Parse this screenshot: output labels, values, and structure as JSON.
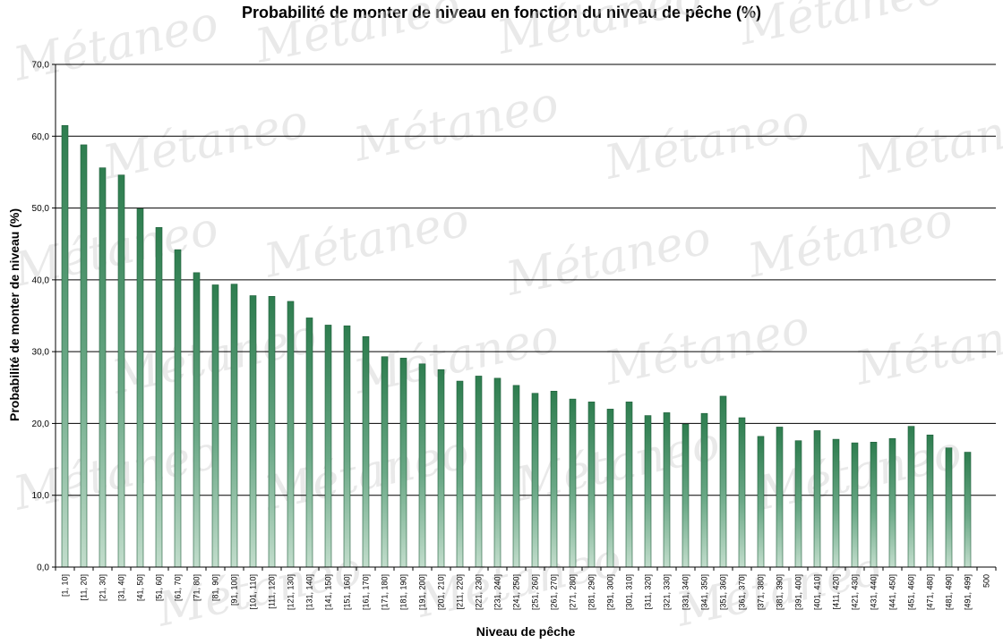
{
  "watermark": "Métaneo",
  "chart_data": {
    "type": "bar",
    "title": "Probabilité de monter de niveau en fonction du niveau de pêche (%)",
    "xlabel": "Niveau de pêche",
    "ylabel": "Probabilité de monter de niveau (%)",
    "ylim": [
      0,
      70
    ],
    "yticks": [
      "0,0",
      "10,0",
      "20,0",
      "30,0",
      "40,0",
      "50,0",
      "60,0",
      "70,0"
    ],
    "grid": true,
    "bar_color": "#2e8b57",
    "categories": [
      "[1, 10]",
      "[11, 20]",
      "[21, 30]",
      "[31, 40]",
      "[41, 50]",
      "[51, 60]",
      "[61, 70]",
      "[71, 80]",
      "[81, 90]",
      "[91, 100]",
      "[101, 110]",
      "[111, 120]",
      "[121, 130]",
      "[131, 140]",
      "[141, 150]",
      "[151, 160]",
      "[161, 170]",
      "[171, 180]",
      "[181, 190]",
      "[191, 200]",
      "[201, 210]",
      "[211, 220]",
      "[221, 230]",
      "[231, 240]",
      "[241, 250]",
      "[251, 260]",
      "[261, 270]",
      "[271, 280]",
      "[281, 290]",
      "[291, 300]",
      "[301, 310]",
      "[311, 320]",
      "[321, 330]",
      "[331, 340]",
      "[341, 350]",
      "[351, 360]",
      "[361, 370]",
      "[371, 380]",
      "[381, 390]",
      "[391, 400]",
      "[401, 410]",
      "[411, 420]",
      "[421, 430]",
      "[431, 440]",
      "[441, 450]",
      "[451, 460]",
      "[471, 480]",
      "[481, 490]",
      "[491, 499]",
      "500"
    ],
    "values": [
      61.5,
      58.8,
      55.6,
      54.6,
      49.9,
      47.3,
      44.2,
      41.0,
      39.3,
      39.4,
      37.8,
      37.7,
      37.0,
      34.7,
      33.7,
      33.6,
      32.1,
      29.3,
      29.1,
      28.3,
      27.5,
      25.9,
      26.6,
      26.3,
      25.3,
      24.2,
      24.5,
      23.4,
      23.0,
      22.0,
      23.0,
      21.1,
      21.5,
      19.9,
      21.4,
      23.8,
      20.8,
      18.2,
      19.5,
      17.6,
      19.0,
      17.8,
      17.3,
      17.4,
      17.9,
      19.6,
      18.4,
      16.6,
      16.0,
      0
    ]
  }
}
